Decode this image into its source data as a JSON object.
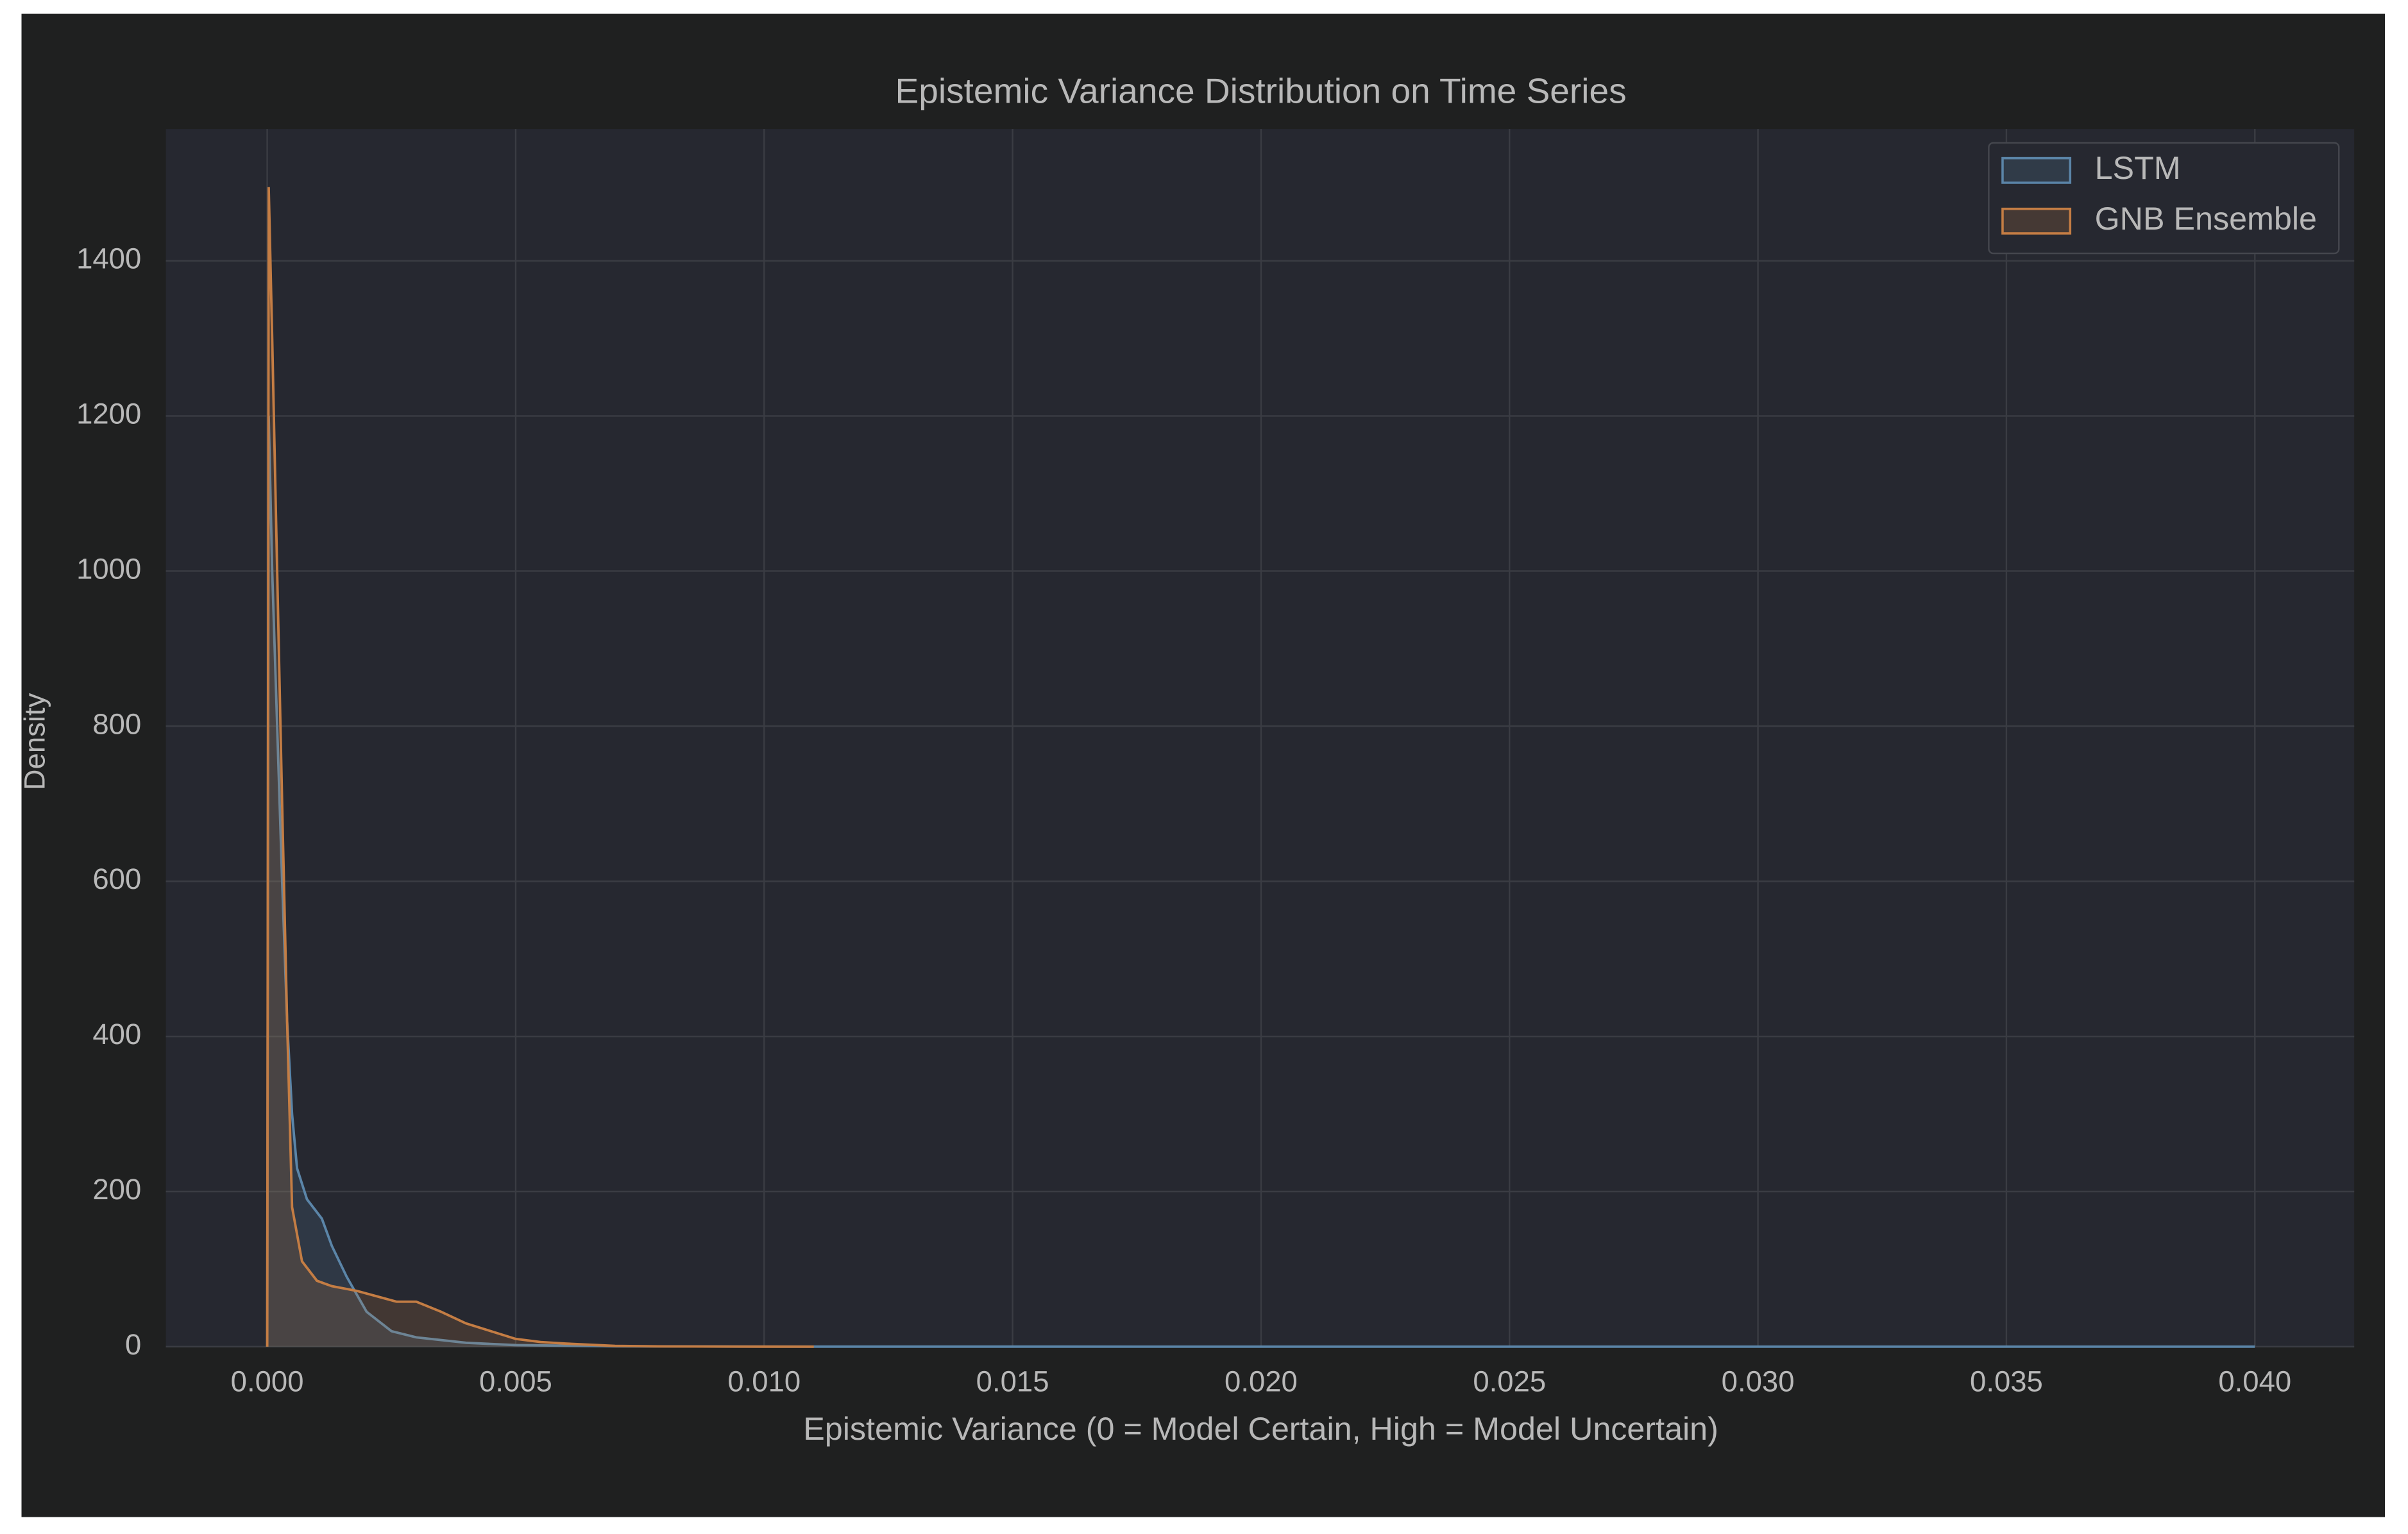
{
  "chart_data": {
    "type": "kde",
    "title": "Epistemic Variance Distribution on Time Series",
    "x_label": "Epistemic Variance (0 = Model Certain, High = Model Uncertain)",
    "y_label": "Density",
    "series": [
      {
        "name": "LSTM",
        "color": "#5b85a8",
        "x": [
          0,
          3e-05,
          0.0001,
          0.0002,
          0.0003,
          0.0004,
          0.0005,
          0.0006,
          0.0008,
          0.0011,
          0.0013,
          0.0016,
          0.002,
          0.0025,
          0.003,
          0.004,
          0.005,
          0.007,
          0.01,
          0.02,
          0.03,
          0.04
        ],
        "values": [
          0,
          1200,
          1000,
          800,
          600,
          420,
          300,
          230,
          190,
          165,
          130,
          90,
          45,
          20,
          12,
          5,
          2,
          0.5,
          0.1,
          0,
          0,
          0
        ]
      },
      {
        "name": "GNB Ensemble",
        "color": "#c47d44",
        "x": [
          0,
          3e-05,
          0.0001,
          0.0002,
          0.0003,
          0.0004,
          0.0005,
          0.0007,
          0.001,
          0.0013,
          0.0018,
          0.0022,
          0.0026,
          0.003,
          0.0035,
          0.004,
          0.0045,
          0.005,
          0.0055,
          0.006,
          0.007,
          0.008,
          0.01,
          0.011
        ],
        "values": [
          0,
          1495,
          1300,
          1000,
          700,
          420,
          180,
          110,
          85,
          78,
          72,
          65,
          58,
          58,
          45,
          30,
          20,
          10,
          6,
          4,
          1,
          0.3,
          0.05,
          0
        ]
      }
    ],
    "xlim": [
      -0.00204,
      0.042
    ],
    "ylim": [
      0,
      1570
    ],
    "xticks": [
      {
        "value": 0,
        "label": "0.000"
      },
      {
        "value": 0.005,
        "label": "0.005"
      },
      {
        "value": 0.01,
        "label": "0.010"
      },
      {
        "value": 0.015,
        "label": "0.015"
      },
      {
        "value": 0.02,
        "label": "0.020"
      },
      {
        "value": 0.025,
        "label": "0.025"
      },
      {
        "value": 0.03,
        "label": "0.030"
      },
      {
        "value": 0.035,
        "label": "0.035"
      },
      {
        "value": 0.04,
        "label": "0.040"
      }
    ],
    "yticks": [
      0,
      200,
      400,
      600,
      800,
      1000,
      1200,
      1400
    ],
    "grid": true,
    "legend": "upper right"
  }
}
